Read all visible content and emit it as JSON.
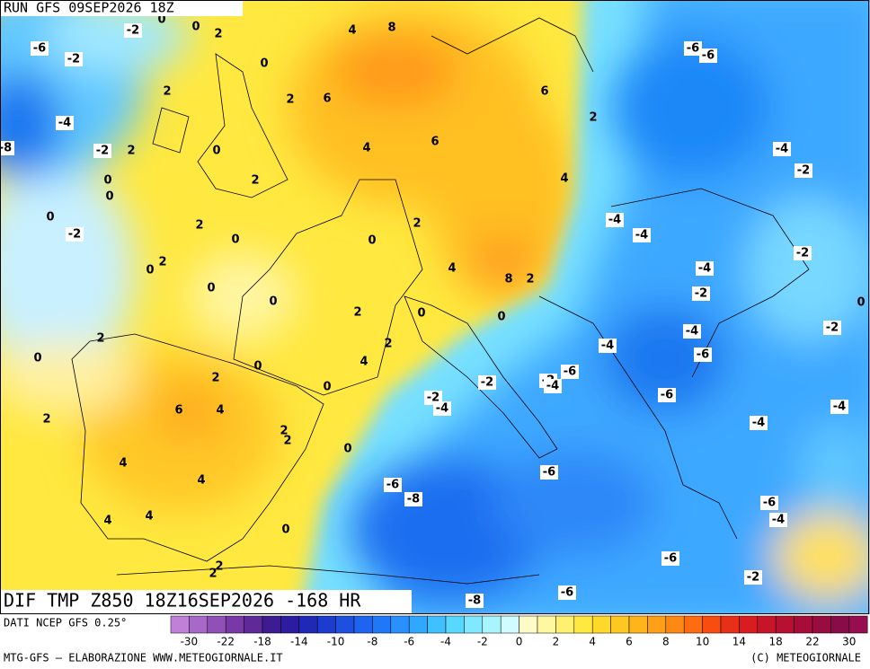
{
  "header": {
    "run": "RUN GFS 09SEP2026 18Z"
  },
  "title": "DIF TMP Z850 18Z16SEP2026 -168 HR",
  "source": "DATI NCEP GFS 0.25°",
  "footer_left": "MTG-GFS — ELABORAZIONE WWW.METEOGIORNALE.IT",
  "footer_right": "(C) METEOGIORNALE",
  "colorbar": {
    "labels": [
      -30,
      -22,
      -18,
      -14,
      -10,
      -8,
      -6,
      -4,
      -2,
      0,
      2,
      4,
      6,
      8,
      10,
      14,
      18,
      22,
      30
    ]
  },
  "contour_labels": [
    -6,
    -2,
    -2,
    0,
    0,
    2,
    4,
    8,
    0,
    2,
    -4,
    -8,
    -2,
    2,
    0,
    2,
    6,
    4,
    6,
    6,
    2,
    -6,
    -6,
    -4,
    -2,
    4,
    2,
    0,
    0,
    0,
    -2,
    2,
    0,
    0,
    2,
    -4,
    -4,
    -4,
    -2,
    -2,
    0,
    -2,
    2,
    0,
    0,
    0,
    4,
    8,
    2,
    0,
    2,
    0,
    2,
    -4,
    -4,
    -6,
    2,
    0,
    0,
    4,
    2,
    0,
    -2,
    -2,
    -6,
    -4,
    -2,
    -4,
    -6,
    -4,
    -4,
    6,
    4,
    2,
    2,
    2,
    0,
    4,
    -6,
    4,
    -6,
    -8,
    -6,
    -4,
    4,
    4,
    0,
    -6,
    2,
    2,
    -2,
    -6,
    -8
  ]
}
